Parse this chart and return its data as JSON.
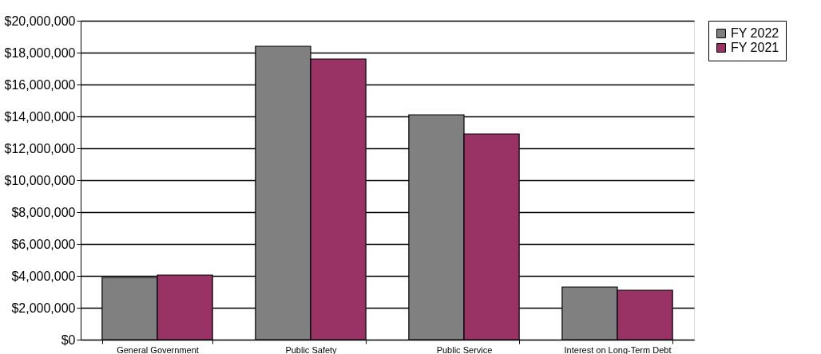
{
  "chart_data": {
    "type": "bar",
    "categories": [
      "General Government",
      "Public Safety",
      "Public Service",
      "Interest on Long-Term Debt"
    ],
    "series": [
      {
        "name": "FY 2022",
        "color": "#808080",
        "values": [
          3900000,
          18400000,
          14100000,
          3300000
        ]
      },
      {
        "name": "FY 2021",
        "color": "#993366",
        "values": [
          4050000,
          17600000,
          12900000,
          3100000
        ]
      }
    ],
    "ylim": [
      0,
      20000000
    ],
    "yticks": [
      {
        "value": 0,
        "label": "$0"
      },
      {
        "value": 2000000,
        "label": "$2,000,000"
      },
      {
        "value": 4000000,
        "label": "$4,000,000"
      },
      {
        "value": 6000000,
        "label": "$6,000,000"
      },
      {
        "value": 8000000,
        "label": "$8,000,000"
      },
      {
        "value": 10000000,
        "label": "$10,000,000"
      },
      {
        "value": 12000000,
        "label": "$12,000,000"
      },
      {
        "value": 14000000,
        "label": "$14,000,000"
      },
      {
        "value": 16000000,
        "label": "$16,000,000"
      },
      {
        "value": 18000000,
        "label": "$18,000,000"
      },
      {
        "value": 20000000,
        "label": "$20,000,000"
      }
    ],
    "grid": "y",
    "legend": "right"
  }
}
